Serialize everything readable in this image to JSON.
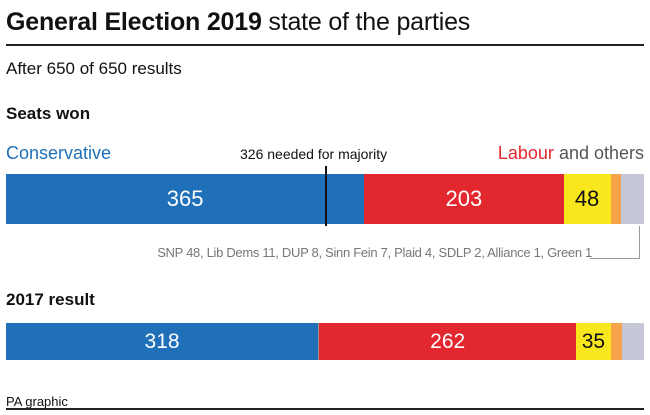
{
  "header": {
    "title_bold": "General Election 2019",
    "title_light": "state of the parties",
    "subtitle": "After 650 of 650 results"
  },
  "sections": {
    "seats_won": "Seats won",
    "result_2017": "2017 result"
  },
  "legend": {
    "conservative": "Conservative",
    "labour": "Labour",
    "and_others": "and others",
    "majority": "326 needed for majority"
  },
  "others_breakdown": "SNP 48, Lib Dems 11, DUP 8, Sinn Fein 7, Plaid 4, SDLP 2, Alliance 1, Green 1",
  "credit": "PA graphic",
  "colors": {
    "conservative": "#1f70b8",
    "speaker": "#9a9a9a",
    "labour": "#e2272e",
    "snp": "#f9e71e",
    "libdem": "#f7a34c",
    "others": "#c5c6d6",
    "majority_line": "#111111"
  },
  "chart_data": [
    {
      "type": "bar",
      "stacked": true,
      "title": "Seats won",
      "total": 650,
      "majority": 326,
      "segments": [
        {
          "key": "conservative",
          "value": 365,
          "label": "365",
          "color": "#1f70b8"
        },
        {
          "key": "labour",
          "value": 203,
          "label": "203",
          "color": "#e2272e"
        },
        {
          "key": "snp",
          "value": 48,
          "label": "48",
          "color": "#f9e71e"
        },
        {
          "key": "libdem",
          "value": 11,
          "label": "",
          "color": "#f7a34c"
        },
        {
          "key": "others",
          "value": 23,
          "label": "",
          "color": "#c5c6d6"
        }
      ]
    },
    {
      "type": "bar",
      "stacked": true,
      "title": "2017 result",
      "total": 650,
      "segments": [
        {
          "key": "conservative",
          "value": 318,
          "label": "318",
          "color": "#1f70b8"
        },
        {
          "key": "speaker",
          "value": 1,
          "label": "",
          "color": "#9a9a9a"
        },
        {
          "key": "labour",
          "value": 262,
          "label": "262",
          "color": "#e2272e"
        },
        {
          "key": "snp",
          "value": 35,
          "label": "35",
          "color": "#f9e71e"
        },
        {
          "key": "libdem",
          "value": 12,
          "label": "",
          "color": "#f7a34c"
        },
        {
          "key": "others",
          "value": 22,
          "label": "",
          "color": "#c5c6d6"
        }
      ]
    }
  ]
}
